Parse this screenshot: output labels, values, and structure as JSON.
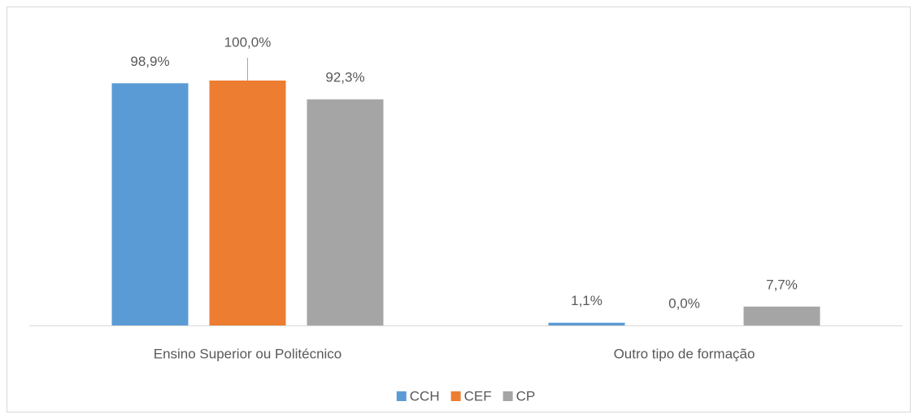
{
  "chart_data": {
    "type": "bar",
    "categories": [
      "Ensino Superior ou Politécnico",
      "Outro tipo de formação"
    ],
    "series": [
      {
        "name": "CCH",
        "color": "#5b9bd5",
        "values": [
          98.9,
          1.1
        ],
        "value_labels": [
          "98,9%",
          "1,1%"
        ]
      },
      {
        "name": "CEF",
        "color": "#ed7d31",
        "values": [
          100.0,
          0.0
        ],
        "value_labels": [
          "100,0%",
          "0,0%"
        ]
      },
      {
        "name": "CP",
        "color": "#a5a5a5",
        "values": [
          92.3,
          7.7
        ],
        "value_labels": [
          "92,3%",
          "7,7%"
        ]
      }
    ],
    "legend": "bottom"
  }
}
